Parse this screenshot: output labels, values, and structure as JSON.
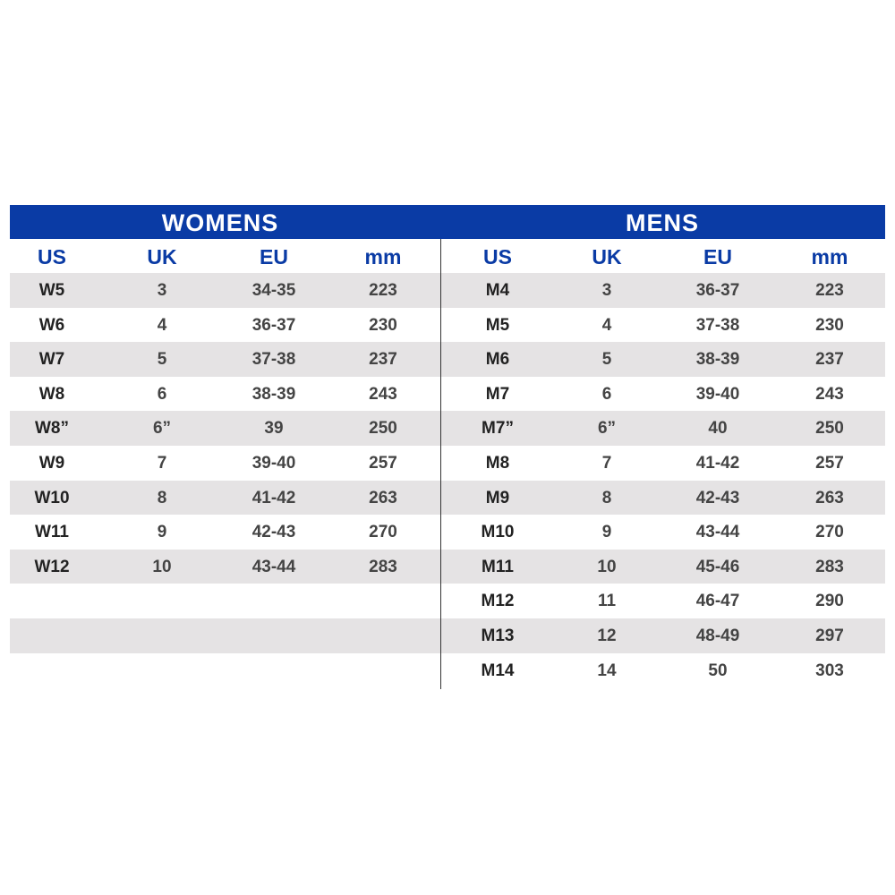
{
  "womens": {
    "title": "WOMENS",
    "headers": [
      "US",
      "UK",
      "EU",
      "mm"
    ],
    "rows": [
      [
        "W5",
        "3",
        "34-35",
        "223"
      ],
      [
        "W6",
        "4",
        "36-37",
        "230"
      ],
      [
        "W7",
        "5",
        "37-38",
        "237"
      ],
      [
        "W8",
        "6",
        "38-39",
        "243"
      ],
      [
        "W8”",
        "6”",
        "39",
        "250"
      ],
      [
        "W9",
        "7",
        "39-40",
        "257"
      ],
      [
        "W10",
        "8",
        "41-42",
        "263"
      ],
      [
        "W11",
        "9",
        "42-43",
        "270"
      ],
      [
        "W12",
        "10",
        "43-44",
        "283"
      ]
    ]
  },
  "mens": {
    "title": "MENS",
    "headers": [
      "US",
      "UK",
      "EU",
      "mm"
    ],
    "rows": [
      [
        "M4",
        "3",
        "36-37",
        "223"
      ],
      [
        "M5",
        "4",
        "37-38",
        "230"
      ],
      [
        "M6",
        "5",
        "38-39",
        "237"
      ],
      [
        "M7",
        "6",
        "39-40",
        "243"
      ],
      [
        "M7”",
        "6”",
        "40",
        "250"
      ],
      [
        "M8",
        "7",
        "41-42",
        "257"
      ],
      [
        "M9",
        "8",
        "42-43",
        "263"
      ],
      [
        "M10",
        "9",
        "43-44",
        "270"
      ],
      [
        "M11",
        "10",
        "45-46",
        "283"
      ],
      [
        "M12",
        "11",
        "46-47",
        "290"
      ],
      [
        "M13",
        "12",
        "48-49",
        "297"
      ],
      [
        "M14",
        "14",
        "50",
        "303"
      ]
    ]
  },
  "colors": {
    "header_blue": "#0a3ba5",
    "row_shade": "#e5e3e4"
  }
}
